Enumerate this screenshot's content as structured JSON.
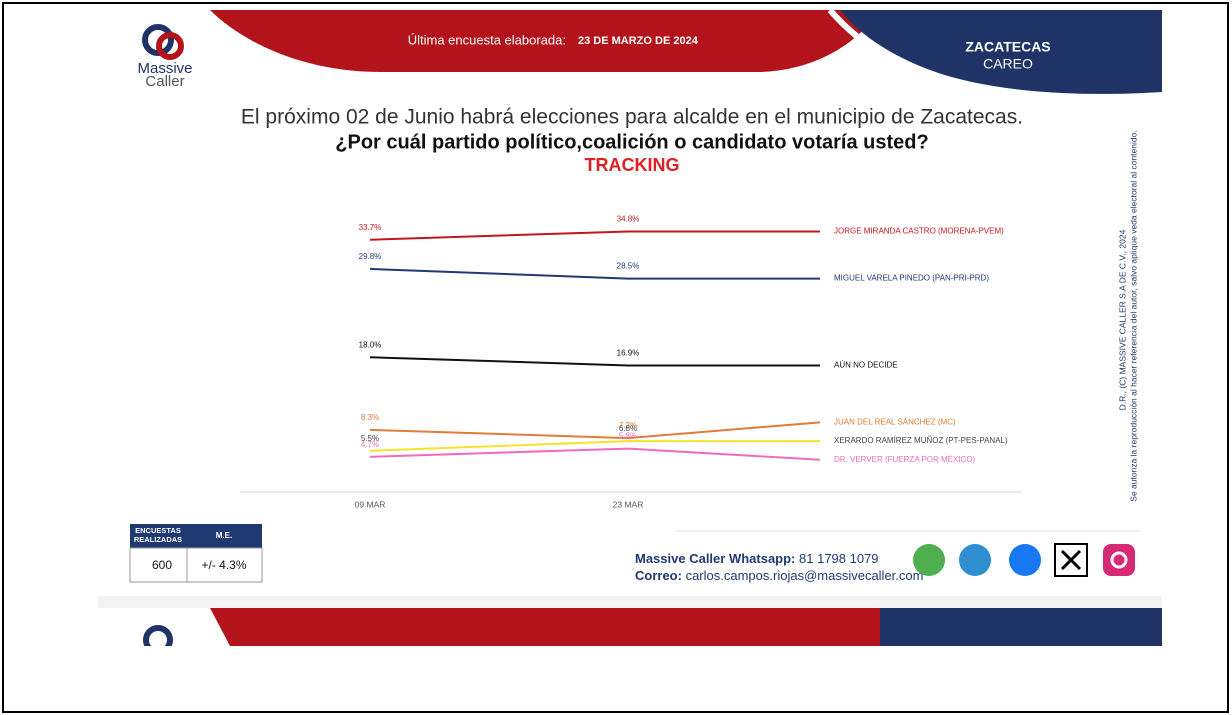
{
  "header": {
    "logo": [
      "Massive",
      "Caller"
    ],
    "date_label": "Última encuesta elaborada:",
    "date": "23 DE MARZO DE 2024",
    "region": "ZACATECAS",
    "subregion": "CAREO"
  },
  "question": {
    "line1": "El próximo 02 de Junio habrá elecciones para alcalde en el municipio de Zacatecas.",
    "line2": "¿Por cuál partido político,coalición o candidato votaría usted?",
    "line3": "TRACKING"
  },
  "chart_data": {
    "type": "line",
    "categories": [
      "09 MAR",
      "23 MAR",
      null
    ],
    "ylim": [
      0,
      37
    ],
    "series": [
      {
        "name": "JORGE MIRANDA CASTRO (MORENA-PVEM)",
        "color": "#c0171d",
        "values": [
          33.7,
          34.8,
          34.8
        ],
        "value_labels": [
          "33.7%",
          "34.8%",
          null
        ]
      },
      {
        "name": "MIGUEL VARELA PINEDO  (PAN-PRI-PRD)",
        "color": "#1f3a73",
        "values": [
          29.8,
          28.5,
          28.5
        ],
        "value_labels": [
          "29.8%",
          "28.5%",
          null
        ]
      },
      {
        "name": "AÚN NO DECIDE",
        "color": "#111111",
        "values": [
          18.0,
          16.9,
          16.9
        ],
        "value_labels": [
          "18.0%",
          "16.9%",
          null
        ]
      },
      {
        "name": "JUAN DEL REAL SÁNCHEZ (MC)",
        "color": "#e07b39",
        "values": [
          8.3,
          7.2,
          9.3
        ],
        "value_labels": [
          "8.3%",
          "7.2%",
          null
        ]
      },
      {
        "name": "XERARDO RAMÍREZ MUÑOZ (PT-PES-PANAL)",
        "color": "#f3e42a",
        "values": [
          5.5,
          6.8,
          6.8
        ],
        "value_labels": [
          "5.5%",
          "6.8%",
          null
        ]
      },
      {
        "name": "DR. VERVER (FUERZA POR MÉXICO)",
        "color": "#f06bbf",
        "values": [
          4.7,
          5.8,
          4.3
        ],
        "value_labels": [
          "4.7%",
          "5.8%",
          null
        ]
      }
    ]
  },
  "side_note": [
    "D.R., (C) MASSIVE CALLER S.A DE C.V., 2024",
    "Se autoriza la reproducción al hacer referencia del autor, salvo aplique veda electoral al contenido."
  ],
  "table": {
    "header": [
      "ENCUESTAS REALIZADAS",
      "M.E."
    ],
    "rows": [
      [
        600,
        "+/- 4.3%"
      ]
    ]
  },
  "contact": {
    "whatsapp_label": "Massive Caller Whatsapp:",
    "whatsapp": "81 1798 1079",
    "email_label": "Correo:",
    "email": "carlos.campos.riojas@massivecaller.com"
  }
}
